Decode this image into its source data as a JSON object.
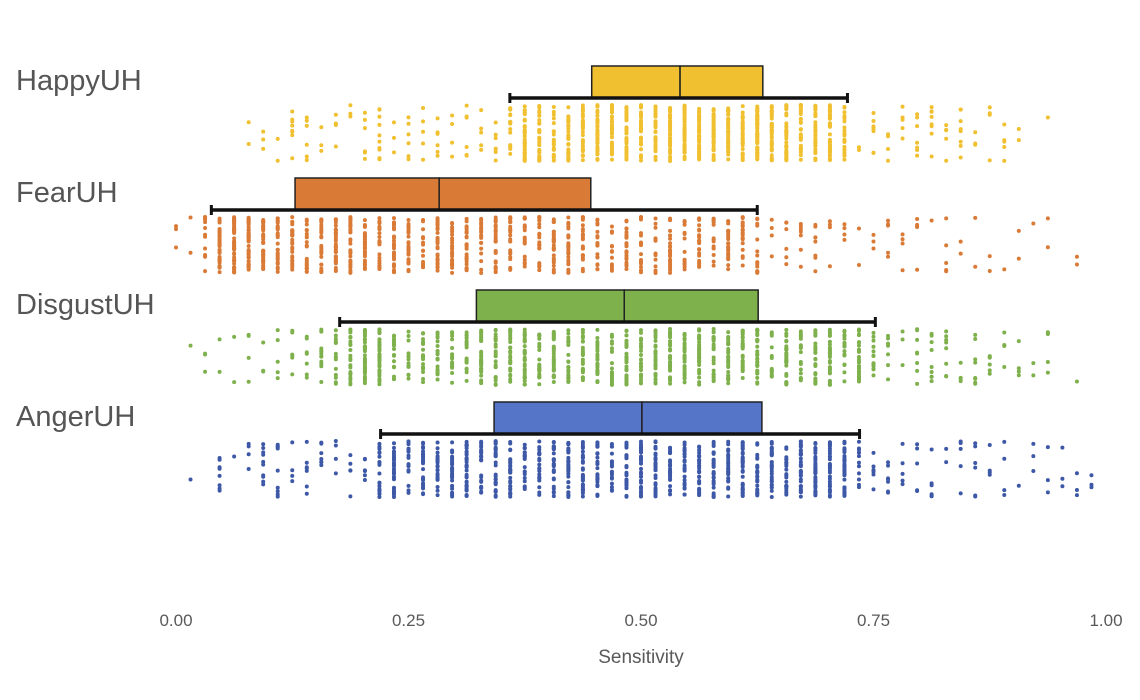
{
  "chart_data": {
    "type": "box",
    "xlabel": "Sensitivity",
    "xlim": [
      0,
      1
    ],
    "xticks": [
      "0.00",
      "0.25",
      "0.50",
      "0.75",
      "1.00"
    ],
    "grid": false,
    "legend": "none",
    "series": [
      {
        "name": "HappyUH",
        "color": "#F0C030",
        "dot_color": "#F0C030",
        "whisker_low": 0.359,
        "q1": 0.447,
        "median": 0.542,
        "q3": 0.631,
        "whisker_high": 0.722,
        "min": 0.06,
        "max": 0.94
      },
      {
        "name": "FearUH",
        "color": "#D97A36",
        "dot_color": "#D97A36",
        "whisker_low": 0.038,
        "q1": 0.128,
        "median": 0.283,
        "q3": 0.446,
        "whisker_high": 0.625,
        "min": 0.0,
        "max": 1.0
      },
      {
        "name": "DisgustUH",
        "color": "#7EB04C",
        "dot_color": "#7EB04C",
        "whisker_low": 0.176,
        "q1": 0.323,
        "median": 0.482,
        "q3": 0.626,
        "whisker_high": 0.752,
        "min": 0.0,
        "max": 1.0
      },
      {
        "name": "AngerUH",
        "color": "#5575C8",
        "dot_color": "#3D58A6",
        "whisker_low": 0.22,
        "q1": 0.342,
        "median": 0.501,
        "q3": 0.63,
        "whisker_high": 0.735,
        "min": 0.0,
        "max": 1.0
      }
    ]
  }
}
